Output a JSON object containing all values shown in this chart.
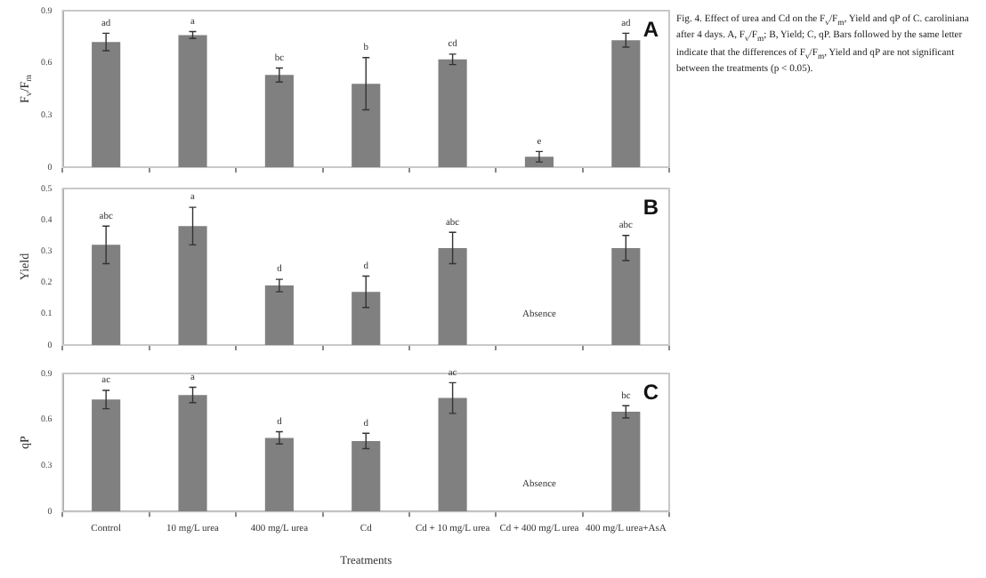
{
  "chart_data": [
    {
      "type": "bar",
      "title": "A",
      "ylabel": "F$_{v}$/F$_{m}$",
      "categories": [
        null,
        null,
        null,
        null,
        null,
        null,
        null
      ],
      "values": [
        0.72,
        0.76,
        0.53,
        0.48,
        0.62,
        0.06,
        0.73
      ],
      "errors": [
        0.05,
        0.02,
        0.04,
        0.15,
        0.03,
        0.03,
        0.04
      ],
      "value_labels": [
        "ad",
        "a",
        "bc",
        "b",
        "cd",
        "e",
        "ad"
      ],
      "color": "#808080",
      "ylim": [
        0,
        0.9
      ],
      "yticks": [
        0,
        0.3,
        0.6,
        0.9
      ],
      "tick_labels": "y"
    },
    {
      "type": "bar",
      "title": "B",
      "ylabel": "Yield",
      "categories": [
        null,
        null,
        null,
        null,
        null,
        null,
        null
      ],
      "values": [
        0.32,
        0.38,
        0.19,
        0.17,
        0.31,
        null,
        0.31
      ],
      "errors": [
        0.06,
        0.06,
        0.02,
        0.05,
        0.05,
        null,
        0.04
      ],
      "value_labels": [
        "abc",
        "a",
        "d",
        "d",
        "abc",
        null,
        "abc"
      ],
      "color": "#808080",
      "ylim": [
        0,
        0.5
      ],
      "yticks": [
        0,
        0.1,
        0.2,
        0.3,
        0.4,
        0.5
      ],
      "tick_labels": "y",
      "annotations": [
        "Absence"
      ]
    },
    {
      "type": "bar",
      "title": "C",
      "ylabel": "qP",
      "xlabel": "Treatments",
      "categories": [
        "Control",
        "10 mg/L urea",
        "400 mg/L urea",
        "Cd",
        "Cd + 10 mg/L urea",
        "Cd + 400 mg/L urea",
        "400 mg/L urea+AsA"
      ],
      "values": [
        0.73,
        0.76,
        0.48,
        0.46,
        0.74,
        null,
        0.65
      ],
      "errors": [
        0.06,
        0.05,
        0.04,
        0.05,
        0.1,
        null,
        0.04
      ],
      "value_labels": [
        "ac",
        "a",
        "d",
        "d",
        "ac",
        null,
        "bc"
      ],
      "color": "#808080",
      "ylim": [
        0,
        0.9
      ],
      "yticks": [
        0,
        0.3,
        0.6,
        0.9
      ],
      "annotations": [
        "Absence"
      ]
    },
    {
      "type": "other",
      "annotations": [
        "Fig. 4. Effect of urea and Cd on the F$_{v}$/F$_{m}$, Yield and qP of C. caroliniana after 4 days. A, F$_{v}$/F$_{m}$; B, Yield; C, qP. Bars followed by the same letter indicate that the differences of F$_{v}$/F$_{m}$, Yield and qP are not significant between the treatments (p < 0.05)."
      ]
    }
  ]
}
